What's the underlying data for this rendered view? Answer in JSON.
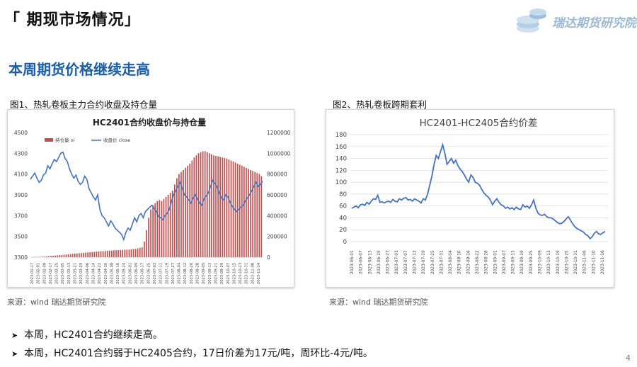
{
  "header": {
    "title": "「 期现市场情况」"
  },
  "logo": {
    "text": "瑞达期货研究院"
  },
  "subtitle": "本周期货价格继续走高",
  "figures": [
    {
      "label": "图1、热轧卷板主力合约收盘及持仓量",
      "source": "来源：wind   瑞达期货研究院"
    },
    {
      "label": "图2、热轧卷板跨期套利",
      "source": "来源：wind   瑞达期货研究院"
    }
  ],
  "bullets": [
    "本周，HC2401合约继续走高。",
    "本周，HC2401合约弱于HC2405合约，17日价差为17元/吨，周环比-4元/吨。"
  ],
  "page_number": "4",
  "colors": {
    "title_blue": "#1b5ea8",
    "line_blue": "#4472c4",
    "bar_red": "#c0504d"
  },
  "chart_data": [
    {
      "type": "bar+line",
      "title": "HC2401合约收盘价与持仓量",
      "legend": [
        "持仓量 oi",
        "收盘价 close"
      ],
      "legend_position": "top-left",
      "y_left": {
        "ticks": [
          "4500",
          "4300",
          "4100",
          "3900",
          "3700",
          "3500",
          "3300"
        ],
        "range": [
          3300,
          4500
        ]
      },
      "y_right": {
        "ticks": [
          "1200000",
          "1000000",
          "800000",
          "600000",
          "400000",
          "200000",
          "0"
        ],
        "range": [
          0,
          1200000
        ]
      },
      "x_ticks": [
        "2023-01-17",
        "2023-02-01",
        "2023-02-09",
        "2023-02-17",
        "2023-02-25",
        "2023-03-05",
        "2023-03-13",
        "2023-03-21",
        "2023-03-29",
        "2023-04-06",
        "2023-04-14",
        "2023-04-22",
        "2023-04-30",
        "2023-05-08",
        "2023-05-16",
        "2023-05-24",
        "2023-06-01",
        "2023-06-09",
        "2023-06-17",
        "2023-06-25",
        "2023-07-03",
        "2023-07-11",
        "2023-07-19",
        "2023-07-27",
        "2023-08-04",
        "2023-08-12",
        "2023-08-20",
        "2023-08-28",
        "2023-09-05",
        "2023-09-13",
        "2023-09-21",
        "2023-09-29",
        "2023-10-07",
        "2023-10-15",
        "2023-10-23",
        "2023-10-31",
        "2023-11-08",
        "2023-11-14"
      ],
      "close": [
        4050,
        4080,
        4110,
        4060,
        4020,
        4040,
        4090,
        4110,
        4180,
        4150,
        4200,
        4240,
        4220,
        4260,
        4300,
        4310,
        4250,
        4220,
        4150,
        4100,
        4060,
        4090,
        4030,
        4000,
        4020,
        4080,
        4050,
        3960,
        3920,
        3880,
        3850,
        3900,
        3760,
        3700,
        3680,
        3640,
        3600,
        3650,
        3620,
        3580,
        3560,
        3540,
        3520,
        3470,
        3540,
        3580,
        3560,
        3620,
        3680,
        3640,
        3700,
        3720,
        3680,
        3740,
        3760,
        3780,
        3800,
        3770,
        3740,
        3690,
        3680,
        3660,
        3700,
        3720,
        3760,
        3840,
        3900,
        3940,
        3980,
        4020,
        3960,
        3900,
        3880,
        3850,
        3820,
        3870,
        3900,
        3860,
        3820,
        3800,
        3860,
        3890,
        3920,
        3980,
        4040,
        4010,
        3980,
        3920,
        3870,
        3850,
        3900,
        3880,
        3830,
        3790,
        3760,
        3740,
        3760,
        3780,
        3800,
        3840,
        3870,
        3900,
        3940,
        3980,
        4020,
        3980,
        4000,
        4030
      ],
      "oi": [
        0,
        0,
        1000,
        2000,
        3000,
        5000,
        6000,
        8000,
        10000,
        12000,
        14000,
        16000,
        18000,
        20000,
        22000,
        24000,
        26000,
        28000,
        30000,
        32000,
        34000,
        36000,
        38000,
        40000,
        42000,
        44000,
        46000,
        48000,
        50000,
        52000,
        54000,
        56000,
        57000,
        58000,
        60000,
        62000,
        63000,
        64000,
        66000,
        67000,
        68000,
        69000,
        70000,
        71000,
        72000,
        73000,
        75000,
        78000,
        80000,
        85000,
        90000,
        95000,
        150000,
        260000,
        380000,
        460000,
        500000,
        520000,
        540000,
        550000,
        540000,
        560000,
        580000,
        600000,
        620000,
        640000,
        700000,
        760000,
        800000,
        820000,
        840000,
        860000,
        880000,
        900000,
        930000,
        960000,
        980000,
        1000000,
        1010000,
        1020000,
        1020000,
        1010000,
        1000000,
        990000,
        980000,
        975000,
        970000,
        965000,
        960000,
        955000,
        950000,
        940000,
        930000,
        920000,
        910000,
        900000,
        890000,
        880000,
        870000,
        860000,
        850000,
        840000,
        830000,
        820000,
        810000,
        800000,
        780000
      ]
    },
    {
      "type": "line",
      "title": "HC2401-HC2405合约价差",
      "y_ticks": [
        "180",
        "160",
        "140",
        "120",
        "100",
        "80",
        "60",
        "40",
        "20",
        "0"
      ],
      "ylim": [
        0,
        180
      ],
      "x_ticks": [
        "2023-06-01",
        "2023-06-07",
        "2023-06-13",
        "2023-06-19",
        "2023-06-27",
        "2023-07-03",
        "2023-07-07",
        "2023-07-13",
        "2023-07-19",
        "2023-07-25",
        "2023-07-31",
        "2023-08-04",
        "2023-08-10",
        "2023-08-16",
        "2023-08-22",
        "2023-08-28",
        "2023-09-01",
        "2023-09-07",
        "2023-09-13",
        "2023-09-19",
        "2023-09-25",
        "2023-10-09",
        "2023-10-13",
        "2023-10-19",
        "2023-10-25",
        "2023-10-31",
        "2023-11-06",
        "2023-11-10",
        "2023-11-16"
      ],
      "values": [
        56,
        58,
        60,
        57,
        62,
        63,
        61,
        66,
        63,
        68,
        72,
        71,
        78,
        66,
        67,
        65,
        67,
        68,
        66,
        71,
        68,
        67,
        72,
        70,
        73,
        74,
        70,
        71,
        68,
        72,
        70,
        68,
        65,
        72,
        70,
        80,
        95,
        110,
        130,
        145,
        140,
        152,
        163,
        148,
        130,
        135,
        140,
        132,
        137,
        128,
        122,
        118,
        112,
        105,
        100,
        112,
        108,
        100,
        98,
        95,
        88,
        82,
        78,
        75,
        70,
        62,
        68,
        72,
        66,
        62,
        60,
        56,
        58,
        55,
        57,
        54,
        58,
        55,
        54,
        62,
        58,
        60,
        56,
        62,
        70,
        56,
        48,
        45,
        44,
        46,
        42,
        40,
        40,
        38,
        35,
        32,
        30,
        31,
        34,
        38,
        42,
        36,
        30,
        25,
        22,
        20,
        18,
        16,
        12,
        10,
        5,
        8,
        14,
        17,
        13,
        12,
        15,
        17
      ]
    }
  ]
}
